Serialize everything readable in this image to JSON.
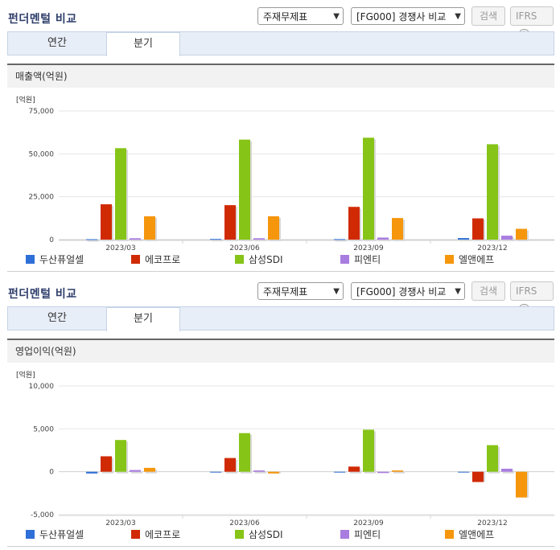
{
  "header": {
    "title": "펀더멘털 비교",
    "statement_select": "주재무제표",
    "compare_select": "[FG000] 경쟁사 비교",
    "search_label": "검색",
    "ifrs_label": "IFRS",
    "help_label": "?"
  },
  "tabs": [
    {
      "label": "연간",
      "active": false
    },
    {
      "label": "분기",
      "active": true
    }
  ],
  "colors": {
    "두산퓨얼셀": "#2f6fd8",
    "에코프로": "#d02a05",
    "삼성SDI": "#86c417",
    "피엔티": "#a97de0",
    "엘앤에프": "#f5960c"
  },
  "panels": [
    {
      "section_title": "매출액(억원)",
      "chart_data": {
        "type": "bar",
        "unit_label": "[억원]",
        "categories": [
          "2023/03",
          "2023/06",
          "2023/09",
          "2023/12"
        ],
        "ylim": [
          0,
          75000
        ],
        "yticks": [
          0,
          25000,
          50000,
          75000
        ],
        "ytick_labels": [
          "0",
          "25,000",
          "50,000",
          "75,000"
        ],
        "grid": true,
        "legend_position": "bottom",
        "series": [
          {
            "name": "두산퓨얼셀",
            "values": [
              250,
              400,
              300,
              900
            ]
          },
          {
            "name": "에코프로",
            "values": [
              20600,
              20100,
              19100,
              12400
            ]
          },
          {
            "name": "삼성SDI",
            "values": [
              53300,
              58300,
              59400,
              55600
            ]
          },
          {
            "name": "피엔티",
            "values": [
              800,
              800,
              1200,
              2300
            ]
          },
          {
            "name": "엘앤에프",
            "values": [
              13600,
              13600,
              12600,
              6300
            ]
          }
        ]
      }
    },
    {
      "section_title": "영업이익(억원)",
      "chart_data": {
        "type": "bar",
        "unit_label": "[억원]",
        "categories": [
          "2023/03",
          "2023/06",
          "2023/09",
          "2023/12"
        ],
        "ylim": [
          -5000,
          10000
        ],
        "yticks": [
          -5000,
          0,
          5000,
          10000
        ],
        "ytick_labels": [
          "-5,000",
          "0",
          "5,000",
          "10,000"
        ],
        "grid": true,
        "legend_position": "bottom",
        "series": [
          {
            "name": "두산퓨얼셀",
            "values": [
              -200,
              -30,
              -30,
              -30
            ]
          },
          {
            "name": "에코프로",
            "values": [
              1800,
              1600,
              600,
              -1200
            ]
          },
          {
            "name": "삼성SDI",
            "values": [
              3700,
              4500,
              4900,
              3100
            ]
          },
          {
            "name": "피엔티",
            "values": [
              200,
              150,
              -150,
              350
            ]
          },
          {
            "name": "엘앤에프",
            "values": [
              450,
              -200,
              150,
              -3000
            ]
          }
        ]
      }
    }
  ]
}
